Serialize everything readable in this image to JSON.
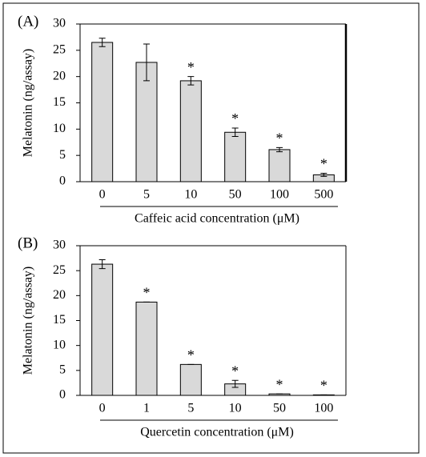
{
  "chart_data": [
    {
      "type": "bar",
      "panel_label": "(A)",
      "y_label": "Melatonin (ng/assay)",
      "x_label": "Caffeic acid concentration (μM)",
      "categories": [
        "0",
        "5",
        "10",
        "50",
        "100",
        "500"
      ],
      "values": [
        26.5,
        22.7,
        19.2,
        9.4,
        6.1,
        1.3
      ],
      "errors": [
        0.8,
        3.5,
        0.8,
        0.8,
        0.4,
        0.3
      ],
      "markers": [
        null,
        null,
        "*",
        "*",
        "*",
        "*"
      ],
      "color": "#d9d9d9",
      "ylim": [
        0,
        30
      ],
      "yticks": [
        0,
        5,
        10,
        15,
        20,
        25,
        30
      ]
    },
    {
      "type": "bar",
      "panel_label": "(B)",
      "y_label": "Melatonin (ng/assay)",
      "x_label": "Quercetin concentration (μM)",
      "categories": [
        "0",
        "1",
        "5",
        "10",
        "50",
        "100"
      ],
      "values": [
        26.3,
        18.7,
        6.2,
        2.3,
        0.3,
        0.1
      ],
      "errors": [
        0.9,
        0,
        0,
        0.7,
        0,
        0
      ],
      "markers": [
        null,
        "*",
        "*",
        "*",
        "*",
        "*"
      ],
      "color": "#d9d9d9",
      "ylim": [
        0,
        30
      ],
      "yticks": [
        0,
        5,
        10,
        15,
        20,
        25,
        30
      ]
    }
  ]
}
